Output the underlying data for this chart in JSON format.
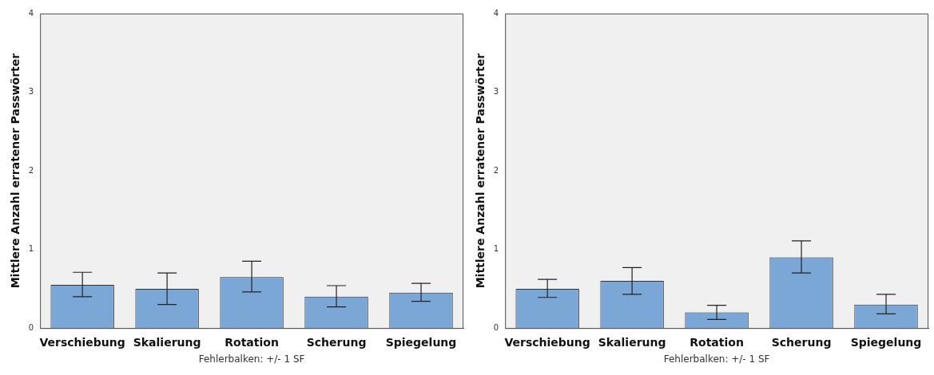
{
  "chart_data": [
    {
      "type": "bar",
      "ylabel": "Mittlere Anzahl erratener Passwörter",
      "categories": [
        "Verschiebung",
        "Skalierung",
        "Rotation",
        "Scherung",
        "Spiegelung"
      ],
      "values": [
        0.55,
        0.5,
        0.65,
        0.4,
        0.45
      ],
      "errors": [
        [
          0.4,
          0.71
        ],
        [
          0.3,
          0.7
        ],
        [
          0.46,
          0.85
        ],
        [
          0.27,
          0.54
        ],
        [
          0.34,
          0.57
        ]
      ],
      "color": "#7ba7d6",
      "ylim": [
        0,
        4
      ],
      "yticks": [
        0,
        1,
        2,
        3,
        4
      ],
      "grid": false,
      "legend": false,
      "annotations": [
        "Fehlerbalken: +/- 1 SF"
      ]
    },
    {
      "type": "bar",
      "ylabel": "Mittlere Anzahl erratener Passwörter",
      "categories": [
        "Verschiebung",
        "Skalierung",
        "Rotation",
        "Scherung",
        "Spiegelung"
      ],
      "values": [
        0.5,
        0.6,
        0.2,
        0.9,
        0.3
      ],
      "errors": [
        [
          0.39,
          0.62
        ],
        [
          0.43,
          0.77
        ],
        [
          0.11,
          0.29
        ],
        [
          0.7,
          1.11
        ],
        [
          0.18,
          0.43
        ]
      ],
      "color": "#7ba7d6",
      "ylim": [
        0,
        4
      ],
      "yticks": [
        0,
        1,
        2,
        3,
        4
      ],
      "grid": false,
      "legend": false,
      "annotations": [
        "Fehlerbalken: +/- 1 SF"
      ]
    }
  ]
}
